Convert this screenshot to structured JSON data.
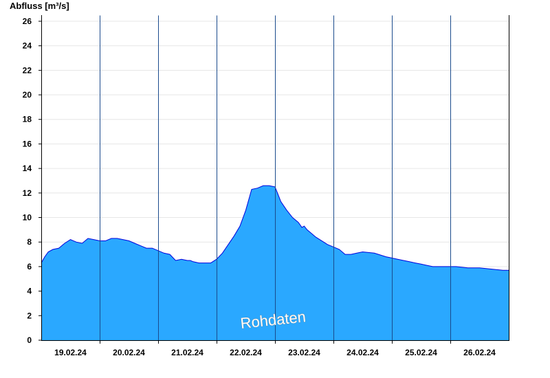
{
  "chart_data": {
    "type": "area",
    "ylabel": "Abfluss [m³/s]",
    "ylim": [
      0,
      26.5
    ],
    "yticks": [
      0,
      2,
      4,
      6,
      8,
      10,
      12,
      14,
      16,
      18,
      20,
      22,
      24,
      26
    ],
    "grid": true,
    "watermark": "Rohdaten",
    "colors": {
      "fill": "#2aa8ff",
      "line": "#0000dd",
      "grid": "#e6e6e6",
      "axis": "#000000"
    },
    "xlim_days": [
      18.5,
      26.5
    ],
    "day_labels": [
      {
        "day": 19,
        "label": "19.02.24"
      },
      {
        "day": 20,
        "label": "20.02.24"
      },
      {
        "day": 21,
        "label": "21.02.24"
      },
      {
        "day": 22,
        "label": "22.02.24"
      },
      {
        "day": 23,
        "label": "23.02.24"
      },
      {
        "day": 24,
        "label": "24.02.24"
      },
      {
        "day": 25,
        "label": "25.02.24"
      },
      {
        "day": 26,
        "label": "26.02.24"
      }
    ],
    "series": [
      {
        "x_days": [
          18.5,
          18.56,
          18.62,
          18.7,
          18.8,
          18.9,
          19.0,
          19.1,
          19.2,
          19.3,
          19.4,
          19.5,
          19.6,
          19.7,
          19.8,
          19.9,
          20.0,
          20.1,
          20.2,
          20.3,
          20.4,
          20.5,
          20.6,
          20.7,
          20.8,
          20.9,
          21.0,
          21.05,
          21.1,
          21.2,
          21.3,
          21.4,
          21.5,
          21.6,
          21.7,
          21.8,
          21.9,
          22.0,
          22.1,
          22.2,
          22.3,
          22.4,
          22.5,
          22.55,
          22.6,
          22.7,
          22.8,
          22.9,
          22.96,
          23.0,
          23.05,
          23.1,
          23.2,
          23.3,
          23.4,
          23.5,
          23.6,
          23.7,
          23.8,
          23.9,
          24.0,
          24.2,
          24.4,
          24.5,
          24.6,
          24.7,
          24.8,
          24.9,
          25.0,
          25.1,
          25.2,
          25.4,
          25.6,
          25.8,
          26.0,
          26.2,
          26.4,
          26.5
        ],
        "y": [
          6.3,
          6.8,
          7.2,
          7.4,
          7.5,
          7.9,
          8.2,
          8.0,
          7.9,
          8.3,
          8.2,
          8.1,
          8.1,
          8.3,
          8.3,
          8.2,
          8.1,
          7.9,
          7.7,
          7.5,
          7.5,
          7.3,
          7.1,
          7.0,
          6.5,
          6.6,
          6.5,
          6.5,
          6.4,
          6.3,
          6.3,
          6.3,
          6.6,
          7.1,
          7.8,
          8.5,
          9.3,
          10.6,
          12.3,
          12.4,
          12.6,
          12.6,
          12.5,
          11.9,
          11.3,
          10.6,
          10.0,
          9.6,
          9.2,
          9.3,
          9.0,
          8.8,
          8.4,
          8.1,
          7.8,
          7.6,
          7.4,
          7.0,
          7.0,
          7.1,
          7.2,
          7.1,
          6.8,
          6.7,
          6.6,
          6.5,
          6.4,
          6.3,
          6.2,
          6.1,
          6.0,
          6.0,
          6.0,
          5.9,
          5.9,
          5.8,
          5.7,
          5.7
        ]
      }
    ]
  }
}
